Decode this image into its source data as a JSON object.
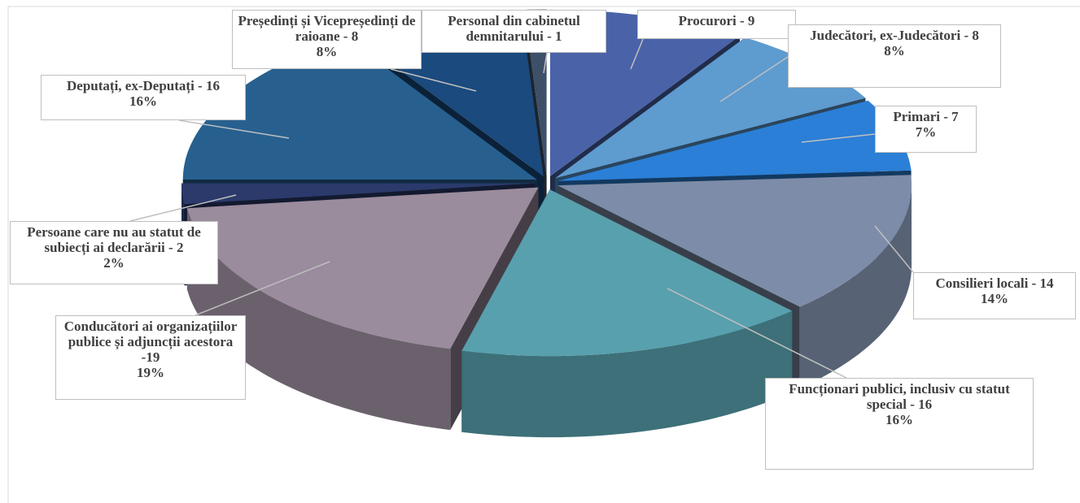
{
  "chart_data": {
    "type": "pie",
    "categories": [
      "Procurori - 9",
      "Judecători, ex-Judecători - 8",
      "Primari - 7",
      "Consilieri locali - 14",
      "Funcționari publici, inclusiv cu statut special - 16",
      "Conducători ai organizațiilor publice și adjuncții acestora -19",
      "Persoane care nu au statut de subiecți ai declarării - 2",
      "Deputați, ex-Deputați - 16",
      "Președinți și Vicepreședinți de raioane - 8",
      "Personal din cabinetul demnitarului - 1"
    ],
    "values": [
      9,
      8,
      7,
      14,
      16,
      19,
      2,
      16,
      8,
      1
    ],
    "value_labels": [
      null,
      "8%",
      "7%",
      "14%",
      "16%",
      "19%",
      "2%",
      "16%",
      "8%",
      null
    ],
    "colors": [
      "#4a63a8",
      "#5e9bcf",
      "#2b7fd6",
      "#7d8ca8",
      "#58a0ae",
      "#9a8b9d",
      "#2b3a6b",
      "#27608f",
      "#1a4a7e",
      "#3d5068"
    ]
  }
}
